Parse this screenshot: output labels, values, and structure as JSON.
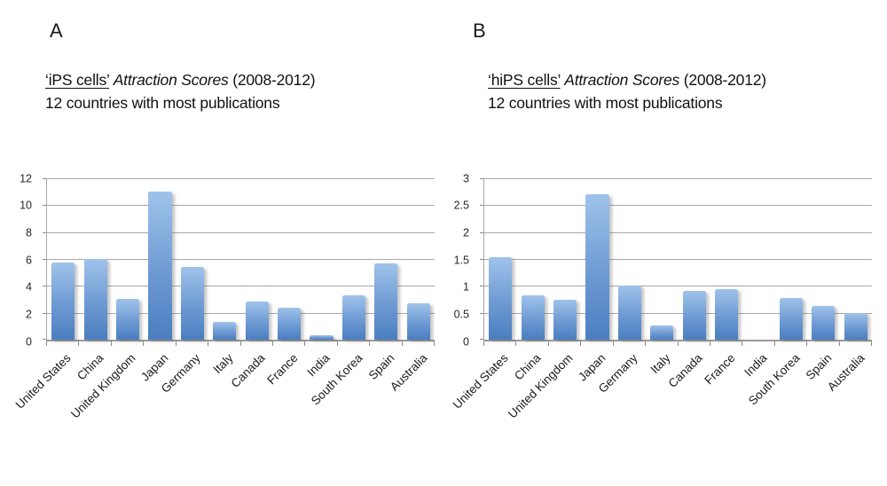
{
  "panels": [
    {
      "label": "A",
      "title_keyword": "‘iPS cells’",
      "title_italic": "Attraction Scores",
      "title_years": "(2008-2012)",
      "title_line2": "12 countries with most publications"
    },
    {
      "label": "B",
      "title_keyword": "‘hiPS cells’",
      "title_italic": "Attraction Scores",
      "title_years": "(2008-2012)",
      "title_line2": "12 countries with most publications"
    }
  ],
  "chart_data": [
    {
      "type": "bar",
      "title": "‘iPS cells’ Attraction Scores (2008-2012) — 12 countries with most publications",
      "categories": [
        "United States",
        "China",
        "United Kingdom",
        "Japan",
        "Germany",
        "Italy",
        "Canada",
        "France",
        "India",
        "South Korea",
        "Spain",
        "Australia"
      ],
      "values": [
        5.75,
        6.0,
        3.05,
        11.0,
        5.4,
        1.3,
        2.85,
        2.35,
        0.3,
        3.3,
        5.7,
        2.7
      ],
      "xlabel": "",
      "ylabel": "",
      "ylim": [
        0,
        12
      ],
      "yticks": [
        0,
        2,
        4,
        6,
        8,
        10,
        12
      ],
      "grid": true,
      "legend": "none",
      "bar_style": "gradient-blue"
    },
    {
      "type": "bar",
      "title": "‘hiPS cells’ Attraction Scores (2008-2012) — 12 countries with most publications",
      "categories": [
        "United States",
        "China",
        "United Kingdom",
        "Japan",
        "Germany",
        "Italy",
        "Canada",
        "France",
        "India",
        "South Korea",
        "Spain",
        "Australia"
      ],
      "values": [
        1.53,
        0.82,
        0.75,
        2.7,
        1.0,
        0.27,
        0.9,
        0.94,
        0,
        0.78,
        0.63,
        0.5
      ],
      "xlabel": "",
      "ylabel": "",
      "ylim": [
        0,
        3
      ],
      "yticks": [
        0,
        0.5,
        1,
        1.5,
        2,
        2.5,
        3
      ],
      "grid": true,
      "legend": "none",
      "bar_style": "gradient-blue"
    }
  ],
  "colors": {
    "bar_gradient_top": "#9fc3ea",
    "bar_gradient_bottom": "#4a7ec0",
    "gridline": "#a8a8a8",
    "axis": "#999999",
    "tick": "#8a8a8a",
    "text": "#1a1a1a"
  }
}
